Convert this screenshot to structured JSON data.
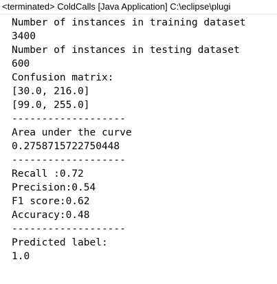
{
  "console": {
    "header": "<terminated> ColdCalls [Java Application] C:\\eclipse\\plugi",
    "lines": [
      "Number of instances in training dataset",
      "3400",
      "Number of instances in testing dataset",
      "600",
      "Confusion matrix:",
      "[30.0, 216.0]",
      "[99.0, 255.0]",
      "-------------------",
      "Area under the curve",
      "0.2758715722750448",
      "-------------------",
      "Recall :0.72",
      "Precision:0.54",
      "F1 score:0.62",
      "Accuracy:0.48",
      "-------------------",
      "Predicted label:",
      "1.0"
    ]
  }
}
